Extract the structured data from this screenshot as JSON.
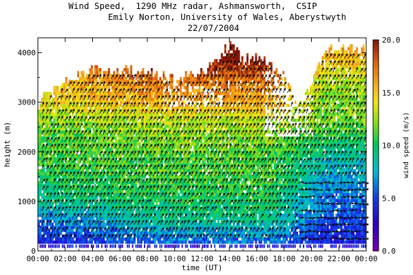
{
  "title": {
    "line1": "Wind Speed,  1290 MHz radar, Ashmansworth,  CSIP",
    "line2": "Emily Norton, University of Wales, Aberystwyth",
    "line3": "22/07/2004"
  },
  "chart_data": {
    "type": "heatmap",
    "title": "Wind Speed,  1290 MHz radar, Ashmansworth,  CSIP",
    "xlabel": "time (UT)",
    "ylabel": "height (m)",
    "xlim": [
      0,
      24
    ],
    "ylim": [
      0,
      4300
    ],
    "x_ticks": [
      "00:00",
      "02:00",
      "04:00",
      "06:00",
      "08:00",
      "10:00",
      "12:00",
      "14:00",
      "16:00",
      "18:00",
      "20:00",
      "22:00",
      "00:00"
    ],
    "y_ticks": [
      0,
      1000,
      2000,
      3000,
      4000
    ],
    "colorbar": {
      "label": "wind speed (m/s)",
      "range": [
        0,
        20
      ],
      "ticks": [
        "0.0",
        "5.0",
        "10.0",
        "15.0",
        "20.0"
      ]
    },
    "value_profile": {
      "heights": [
        200,
        600,
        1000,
        1400,
        1800,
        2200,
        2600,
        3000,
        3400,
        3800,
        4100
      ],
      "wind_speed_early": [
        4,
        6,
        9,
        10,
        11,
        11,
        12,
        14,
        15,
        17,
        18
      ],
      "wind_speed_midday": [
        6,
        9,
        10,
        11,
        11,
        12,
        13,
        16,
        17,
        20,
        20
      ],
      "wind_speed_late": [
        4,
        5,
        6,
        7,
        8,
        10,
        12,
        12,
        13,
        15,
        16
      ]
    },
    "echo_top_m": [
      [
        0.2,
        3000
      ],
      [
        1.5,
        3300
      ],
      [
        2.5,
        3500
      ],
      [
        4,
        3600
      ],
      [
        6,
        3600
      ],
      [
        8,
        3600
      ],
      [
        10,
        3400
      ],
      [
        12,
        3600
      ],
      [
        13.2,
        3800
      ],
      [
        14.0,
        4150
      ],
      [
        15,
        3800
      ],
      [
        16,
        3900
      ],
      [
        17,
        3800
      ],
      [
        18,
        3500
      ],
      [
        19,
        3000
      ],
      [
        20,
        3400
      ],
      [
        21,
        4050
      ],
      [
        22,
        4050
      ],
      [
        23,
        4100
      ],
      [
        24,
        4000
      ]
    ],
    "grid": false,
    "legend": "colorbar-right"
  }
}
